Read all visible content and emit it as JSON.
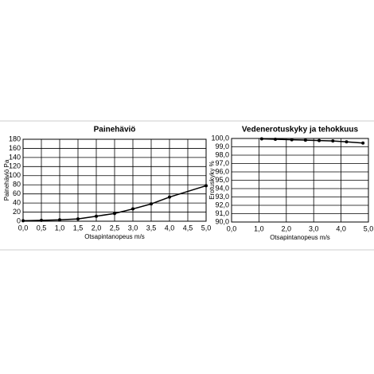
{
  "chart_data": [
    {
      "type": "line",
      "title": "Painehäviö",
      "xlabel": "Otsapintanopeus m/s",
      "ylabel": "Painehäviö Pa",
      "x": [
        0,
        0.5,
        1.0,
        1.5,
        2.0,
        2.5,
        3.0,
        3.5,
        4.0,
        5.0
      ],
      "series": [
        {
          "name": "Painehäviö",
          "color": "#000000",
          "values": [
            1,
            2,
            3,
            5,
            11,
            17,
            27,
            38,
            53,
            78
          ]
        }
      ],
      "xlim": [
        0,
        5
      ],
      "ylim": [
        0,
        180
      ],
      "xticks": [
        {
          "value": 0,
          "label": "0,0"
        },
        {
          "value": 0.5,
          "label": "0,5"
        },
        {
          "value": 1,
          "label": "1,0"
        },
        {
          "value": 1.5,
          "label": "1,5"
        },
        {
          "value": 2,
          "label": "2,0"
        },
        {
          "value": 2.5,
          "label": "2,5"
        },
        {
          "value": 3,
          "label": "3,0"
        },
        {
          "value": 3.5,
          "label": "3,5"
        },
        {
          "value": 4,
          "label": "4,0"
        },
        {
          "value": 4.5,
          "label": "4,5"
        },
        {
          "value": 5,
          "label": "5,0"
        }
      ],
      "yticks": [
        0,
        20,
        40,
        60,
        80,
        100,
        120,
        140,
        160,
        180
      ],
      "grid": true
    },
    {
      "type": "line",
      "title": "Vedenerotuskyky ja tehokkuus",
      "xlabel": "Otsapintanopeus m/s",
      "ylabel": "Erotuskyky %",
      "x": [
        1.1,
        1.6,
        2.2,
        2.7,
        3.2,
        3.7,
        4.2,
        4.8
      ],
      "series": [
        {
          "name": "Erotuskyky",
          "color": "#000000",
          "values": [
            99.95,
            99.9,
            99.85,
            99.8,
            99.75,
            99.7,
            99.6,
            99.45
          ]
        }
      ],
      "xlim": [
        0,
        5
      ],
      "ylim": [
        90,
        100
      ],
      "xticks": [
        {
          "value": 0,
          "label": "0,0"
        },
        {
          "value": 1,
          "label": "1,0"
        },
        {
          "value": 2,
          "label": "2,0"
        },
        {
          "value": 3,
          "label": "3,0"
        },
        {
          "value": 4,
          "label": "4,0"
        },
        {
          "value": 5,
          "label": "5,0"
        }
      ],
      "yticks": [
        {
          "value": 90,
          "label": "90,0"
        },
        {
          "value": 91,
          "label": "91,0"
        },
        {
          "value": 92,
          "label": "92,0"
        },
        {
          "value": 93,
          "label": "93,0"
        },
        {
          "value": 94,
          "label": "94,0"
        },
        {
          "value": 95,
          "label": "95,0"
        },
        {
          "value": 96,
          "label": "96,0"
        },
        {
          "value": 97,
          "label": "97,0"
        },
        {
          "value": 98,
          "label": "98,0"
        },
        {
          "value": 99,
          "label": "99,0"
        },
        {
          "value": 100,
          "label": "100,0"
        }
      ],
      "grid": true
    }
  ]
}
